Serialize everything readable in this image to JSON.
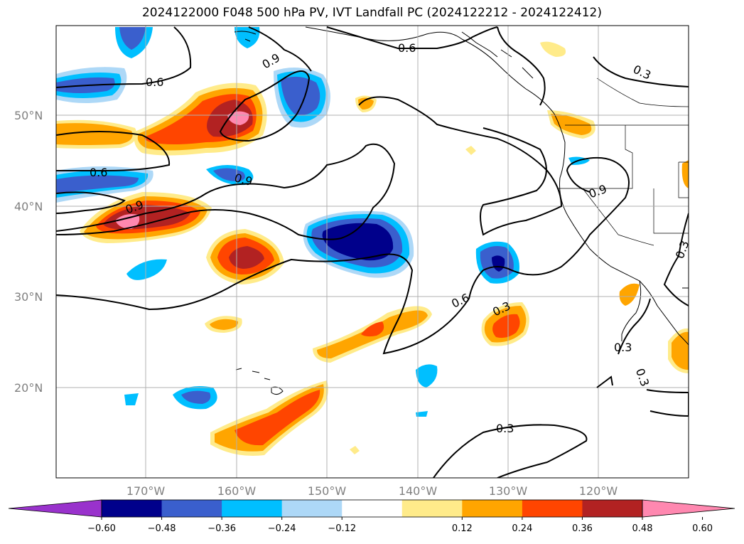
{
  "title": "2024122000 F048 500 hPa PV, IVT Landfall PC (2024122212 - 2024122412)",
  "map": {
    "lat_ticks": [
      "50°N",
      "40°N",
      "30°N",
      "20°N"
    ],
    "lon_ticks": [
      "170°W",
      "160°W",
      "150°W",
      "140°W",
      "130°W",
      "120°W"
    ]
  },
  "contour_labels": [
    "0.6",
    "0.9",
    "0.6",
    "0.6",
    "0.9",
    "0.9",
    "0.3",
    "0.9",
    "0.6",
    "0.3",
    "0.3",
    "0.3",
    "0.3",
    "0.3"
  ],
  "colorbar": {
    "tick_labels": [
      "−0.60",
      "−0.48",
      "−0.36",
      "−0.24",
      "−0.12",
      "0.12",
      "0.24",
      "0.36",
      "0.48",
      "0.60"
    ],
    "colors": [
      "#9932cc",
      "#00008b",
      "#3a5fcd",
      "#00bfff",
      "#add8f7",
      "#ffffff",
      "#ffeb8a",
      "#ffa500",
      "#ff4500",
      "#b22222",
      "#ff88b0"
    ]
  }
}
